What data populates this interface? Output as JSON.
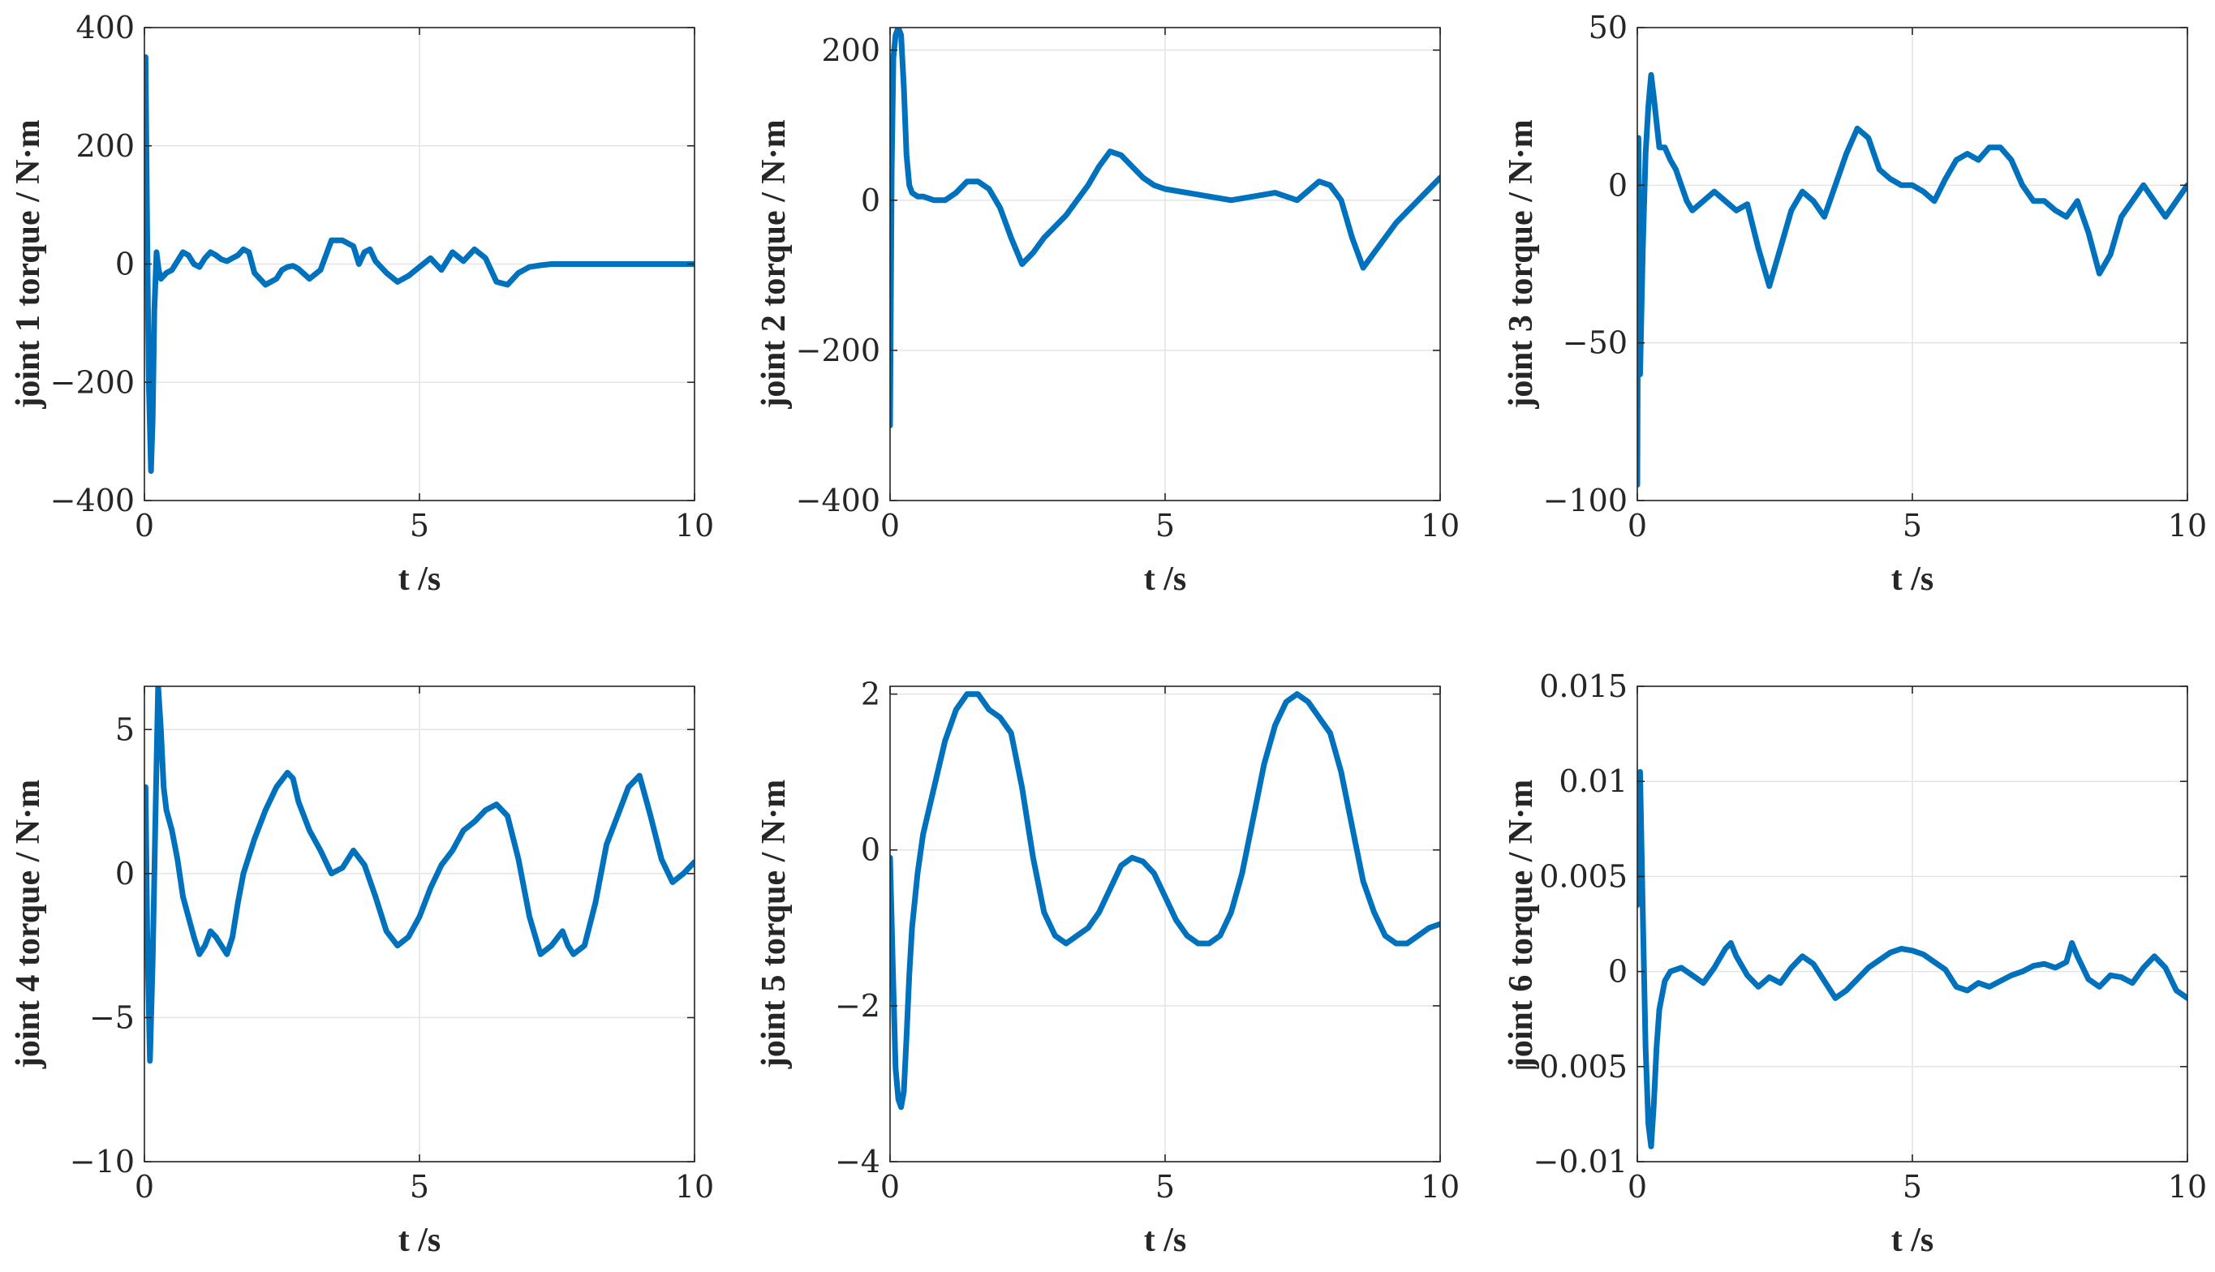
{
  "chart_data": [
    {
      "type": "line",
      "xlabel": "t /s",
      "ylabel": "joint 1 torque / N·m",
      "xlim": [
        0,
        10
      ],
      "ylim": [
        -400,
        400
      ],
      "xticks": [
        0,
        5,
        10
      ],
      "xtick_labels": [
        "0",
        "5",
        "10"
      ],
      "yticks": [
        -400,
        -200,
        0,
        200,
        400
      ],
      "ytick_labels": [
        "−400",
        "−200",
        "0",
        "200",
        "400"
      ],
      "grid": true,
      "color": "#0072BD",
      "x": [
        0,
        0.02,
        0.05,
        0.08,
        0.12,
        0.15,
        0.18,
        0.22,
        0.26,
        0.3,
        0.35,
        0.4,
        0.5,
        0.6,
        0.7,
        0.8,
        0.9,
        1.0,
        1.1,
        1.2,
        1.3,
        1.4,
        1.5,
        1.6,
        1.7,
        1.8,
        1.9,
        2.0,
        2.2,
        2.4,
        2.5,
        2.6,
        2.7,
        2.8,
        3.0,
        3.2,
        3.4,
        3.6,
        3.8,
        3.9,
        4.0,
        4.1,
        4.2,
        4.4,
        4.6,
        4.8,
        5.0,
        5.2,
        5.4,
        5.6,
        5.8,
        6.0,
        6.2,
        6.4,
        6.6,
        6.8,
        7.0,
        7.2,
        7.4,
        7.6,
        7.8,
        8.0,
        8.2,
        8.4,
        8.6,
        8.8,
        9.0,
        9.2,
        9.4,
        9.6,
        9.8,
        10.0
      ],
      "y": [
        30,
        350,
        50,
        -200,
        -350,
        -260,
        -80,
        20,
        -10,
        -25,
        -20,
        -15,
        -10,
        5,
        20,
        15,
        0,
        -5,
        10,
        20,
        15,
        8,
        5,
        10,
        15,
        25,
        20,
        -15,
        -35,
        -25,
        -10,
        -5,
        -3,
        -8,
        -25,
        -10,
        40,
        40,
        30,
        0,
        20,
        25,
        5,
        -15,
        -30,
        -20,
        -5,
        10,
        -10,
        20,
        5,
        25,
        10,
        -30,
        -35,
        -15,
        -5,
        -2,
        0,
        0,
        0,
        0,
        0,
        0,
        0,
        0,
        0,
        0,
        0,
        0,
        0,
        0
      ]
    },
    {
      "type": "line",
      "xlabel": "t /s",
      "ylabel": "joint 2 torque / N·m",
      "xlim": [
        0,
        10
      ],
      "ylim": [
        -400,
        230
      ],
      "xticks": [
        0,
        5,
        10
      ],
      "xtick_labels": [
        "0",
        "5",
        "10"
      ],
      "yticks": [
        -400,
        -200,
        0,
        200
      ],
      "ytick_labels": [
        "−400",
        "−200",
        "0",
        "200"
      ],
      "grid": true,
      "color": "#0072BD",
      "x": [
        0,
        0.03,
        0.06,
        0.1,
        0.15,
        0.2,
        0.25,
        0.3,
        0.35,
        0.4,
        0.5,
        0.6,
        0.8,
        1.0,
        1.2,
        1.4,
        1.6,
        1.8,
        2.0,
        2.2,
        2.4,
        2.6,
        2.8,
        3.0,
        3.2,
        3.4,
        3.6,
        3.8,
        4.0,
        4.2,
        4.4,
        4.6,
        4.8,
        5.0,
        5.4,
        5.8,
        6.2,
        6.6,
        7.0,
        7.4,
        7.8,
        8.0,
        8.2,
        8.4,
        8.6,
        8.8,
        9.0,
        9.2,
        9.4,
        9.6,
        9.8,
        10.0
      ],
      "y": [
        -300,
        40,
        190,
        220,
        230,
        220,
        150,
        60,
        20,
        10,
        5,
        5,
        0,
        0,
        10,
        25,
        25,
        15,
        -10,
        -50,
        -85,
        -70,
        -50,
        -35,
        -20,
        0,
        20,
        45,
        65,
        60,
        45,
        30,
        20,
        15,
        10,
        5,
        0,
        5,
        10,
        0,
        25,
        20,
        0,
        -50,
        -90,
        -70,
        -50,
        -30,
        -15,
        0,
        15,
        30
      ]
    },
    {
      "type": "line",
      "xlabel": "t /s",
      "ylabel": "joint 3 torque / N·m",
      "xlim": [
        0,
        10
      ],
      "ylim": [
        -100,
        50
      ],
      "xticks": [
        0,
        5,
        10
      ],
      "xtick_labels": [
        "0",
        "5",
        "10"
      ],
      "yticks": [
        -100,
        -50,
        0,
        50
      ],
      "ytick_labels": [
        "−100",
        "−50",
        "0",
        "50"
      ],
      "grid": true,
      "color": "#0072BD",
      "x": [
        0,
        0.02,
        0.05,
        0.1,
        0.15,
        0.2,
        0.25,
        0.3,
        0.35,
        0.4,
        0.5,
        0.6,
        0.7,
        0.8,
        0.9,
        1.0,
        1.2,
        1.4,
        1.6,
        1.8,
        2.0,
        2.2,
        2.4,
        2.6,
        2.8,
        3.0,
        3.2,
        3.4,
        3.6,
        3.8,
        4.0,
        4.2,
        4.4,
        4.6,
        4.8,
        5.0,
        5.2,
        5.4,
        5.6,
        5.8,
        6.0,
        6.2,
        6.4,
        6.6,
        6.8,
        7.0,
        7.2,
        7.4,
        7.6,
        7.8,
        8.0,
        8.2,
        8.4,
        8.6,
        8.8,
        9.0,
        9.2,
        9.4,
        9.6,
        9.8,
        10.0
      ],
      "y": [
        -95,
        15,
        -60,
        -20,
        10,
        25,
        35,
        28,
        20,
        12,
        12,
        8,
        5,
        0,
        -5,
        -8,
        -5,
        -2,
        -5,
        -8,
        -6,
        -20,
        -32,
        -20,
        -8,
        -2,
        -5,
        -10,
        0,
        10,
        18,
        15,
        5,
        2,
        0,
        0,
        -2,
        -5,
        2,
        8,
        10,
        8,
        12,
        12,
        8,
        0,
        -5,
        -5,
        -8,
        -10,
        -5,
        -15,
        -28,
        -22,
        -10,
        -5,
        0,
        -5,
        -10,
        -5,
        0
      ]
    },
    {
      "type": "line",
      "xlabel": "t /s",
      "ylabel": "joint 4 torque / N·m",
      "xlim": [
        0,
        10
      ],
      "ylim": [
        -10,
        6.5
      ],
      "xticks": [
        0,
        5,
        10
      ],
      "xtick_labels": [
        "0",
        "5",
        "10"
      ],
      "yticks": [
        -10,
        -5,
        0,
        5
      ],
      "ytick_labels": [
        "−10",
        "−5",
        "0",
        "5"
      ],
      "grid": true,
      "color": "#0072BD",
      "x": [
        0,
        0.02,
        0.05,
        0.1,
        0.15,
        0.2,
        0.25,
        0.3,
        0.35,
        0.4,
        0.5,
        0.6,
        0.7,
        0.8,
        0.9,
        1.0,
        1.1,
        1.2,
        1.3,
        1.4,
        1.5,
        1.6,
        1.7,
        1.8,
        2.0,
        2.2,
        2.4,
        2.6,
        2.7,
        2.8,
        3.0,
        3.2,
        3.4,
        3.6,
        3.8,
        4.0,
        4.2,
        4.4,
        4.6,
        4.8,
        5.0,
        5.2,
        5.4,
        5.6,
        5.8,
        6.0,
        6.2,
        6.4,
        6.6,
        6.8,
        7.0,
        7.2,
        7.4,
        7.6,
        7.7,
        7.8,
        8.0,
        8.2,
        8.4,
        8.6,
        8.8,
        9.0,
        9.2,
        9.4,
        9.6,
        9.8,
        10.0
      ],
      "y": [
        0.8,
        3.0,
        -2.0,
        -6.5,
        -3.0,
        2.0,
        6.5,
        5.0,
        3.0,
        2.2,
        1.5,
        0.5,
        -0.8,
        -1.5,
        -2.2,
        -2.8,
        -2.5,
        -2.0,
        -2.2,
        -2.5,
        -2.8,
        -2.2,
        -1.0,
        0.0,
        1.2,
        2.2,
        3.0,
        3.5,
        3.3,
        2.5,
        1.5,
        0.8,
        0.0,
        0.2,
        0.8,
        0.3,
        -0.8,
        -2.0,
        -2.5,
        -2.2,
        -1.5,
        -0.5,
        0.3,
        0.8,
        1.5,
        1.8,
        2.2,
        2.4,
        2.0,
        0.5,
        -1.5,
        -2.8,
        -2.5,
        -2.0,
        -2.5,
        -2.8,
        -2.5,
        -1.0,
        1.0,
        2.0,
        3.0,
        3.4,
        2.0,
        0.5,
        -0.3,
        0.0,
        0.4
      ]
    },
    {
      "type": "line",
      "xlabel": "t /s",
      "ylabel": "joint 5 torque / N·m",
      "xlim": [
        0,
        10
      ],
      "ylim": [
        -4,
        2.1
      ],
      "xticks": [
        0,
        5,
        10
      ],
      "xtick_labels": [
        "0",
        "5",
        "10"
      ],
      "yticks": [
        -4,
        -2,
        0,
        2
      ],
      "ytick_labels": [
        "−4",
        "−2",
        "0",
        "2"
      ],
      "grid": true,
      "color": "#0072BD",
      "x": [
        0,
        0.05,
        0.1,
        0.15,
        0.2,
        0.25,
        0.3,
        0.35,
        0.4,
        0.5,
        0.6,
        0.8,
        1.0,
        1.2,
        1.4,
        1.6,
        1.8,
        2.0,
        2.2,
        2.4,
        2.6,
        2.8,
        3.0,
        3.2,
        3.4,
        3.6,
        3.8,
        4.0,
        4.2,
        4.4,
        4.6,
        4.8,
        5.0,
        5.2,
        5.4,
        5.6,
        5.8,
        6.0,
        6.2,
        6.4,
        6.6,
        6.8,
        7.0,
        7.2,
        7.4,
        7.6,
        7.8,
        8.0,
        8.2,
        8.4,
        8.6,
        8.8,
        9.0,
        9.2,
        9.4,
        9.6,
        9.8,
        10.0
      ],
      "y": [
        -0.1,
        -1.5,
        -2.8,
        -3.2,
        -3.3,
        -3.1,
        -2.4,
        -1.6,
        -1.0,
        -0.3,
        0.2,
        0.8,
        1.4,
        1.8,
        2.0,
        2.0,
        1.8,
        1.7,
        1.5,
        0.8,
        -0.1,
        -0.8,
        -1.1,
        -1.2,
        -1.1,
        -1.0,
        -0.8,
        -0.5,
        -0.2,
        -0.1,
        -0.15,
        -0.3,
        -0.6,
        -0.9,
        -1.1,
        -1.2,
        -1.2,
        -1.1,
        -0.8,
        -0.3,
        0.4,
        1.1,
        1.6,
        1.9,
        2.0,
        1.9,
        1.7,
        1.5,
        1.0,
        0.3,
        -0.4,
        -0.8,
        -1.1,
        -1.2,
        -1.2,
        -1.1,
        -1.0,
        -0.95
      ]
    },
    {
      "type": "line",
      "xlabel": "t /s",
      "ylabel": "joint 6 torque / N·m",
      "xlim": [
        0,
        10
      ],
      "ylim": [
        -0.01,
        0.015
      ],
      "xticks": [
        0,
        5,
        10
      ],
      "xtick_labels": [
        "0",
        "5",
        "10"
      ],
      "yticks": [
        -0.01,
        -0.005,
        0,
        0.005,
        0.01,
        0.015
      ],
      "ytick_labels": [
        "−0.01",
        "−0.005",
        "0",
        "0.005",
        "0.01",
        "0.015"
      ],
      "grid": true,
      "color": "#0072BD",
      "x": [
        0,
        0.05,
        0.1,
        0.15,
        0.2,
        0.25,
        0.3,
        0.35,
        0.4,
        0.5,
        0.6,
        0.8,
        1.0,
        1.2,
        1.4,
        1.6,
        1.7,
        1.8,
        2.0,
        2.2,
        2.4,
        2.6,
        2.8,
        3.0,
        3.2,
        3.4,
        3.6,
        3.8,
        4.0,
        4.2,
        4.4,
        4.6,
        4.8,
        5.0,
        5.2,
        5.4,
        5.6,
        5.8,
        6.0,
        6.2,
        6.4,
        6.6,
        6.8,
        7.0,
        7.2,
        7.4,
        7.6,
        7.8,
        7.9,
        8.0,
        8.2,
        8.4,
        8.6,
        8.8,
        9.0,
        9.2,
        9.4,
        9.6,
        9.8,
        10.0
      ],
      "y": [
        0.0035,
        0.0105,
        0.003,
        -0.004,
        -0.008,
        -0.0092,
        -0.007,
        -0.004,
        -0.002,
        -0.0005,
        0.0,
        0.0002,
        -0.0002,
        -0.0006,
        0.0002,
        0.0012,
        0.0015,
        0.0008,
        -0.0002,
        -0.0008,
        -0.0003,
        -0.0006,
        0.0002,
        0.0008,
        0.0004,
        -0.0005,
        -0.0014,
        -0.001,
        -0.0004,
        0.0002,
        0.0006,
        0.001,
        0.0012,
        0.0011,
        0.0009,
        0.0005,
        0.0001,
        -0.0008,
        -0.001,
        -0.0006,
        -0.0008,
        -0.0005,
        -0.0002,
        0.0,
        0.0003,
        0.0004,
        0.0002,
        0.0005,
        0.0015,
        0.0008,
        -0.0004,
        -0.0008,
        -0.0002,
        -0.0003,
        -0.0006,
        0.0002,
        0.0008,
        0.0002,
        -0.001,
        -0.0014
      ]
    }
  ]
}
